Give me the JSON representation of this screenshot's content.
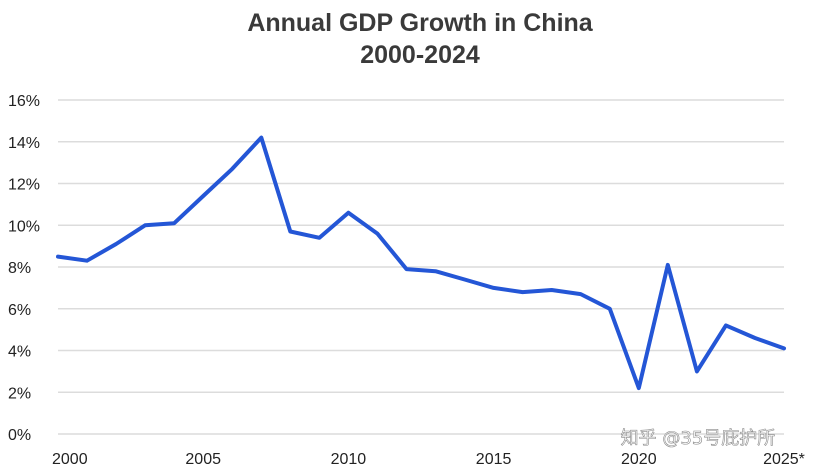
{
  "chart_data": {
    "type": "line",
    "title": "Annual GDP Growth in China",
    "subtitle": "2000-2024",
    "xlabel": "",
    "ylabel": "",
    "xlim": [
      2000,
      2025
    ],
    "ylim": [
      0,
      16
    ],
    "grid": "horizontal",
    "legend": "none",
    "x_ticks": [
      {
        "value": 2000,
        "label": "2000"
      },
      {
        "value": 2005,
        "label": "2005"
      },
      {
        "value": 2010,
        "label": "2010"
      },
      {
        "value": 2015,
        "label": "2015"
      },
      {
        "value": 2020,
        "label": "2020"
      },
      {
        "value": 2025,
        "label": "2025*"
      }
    ],
    "y_ticks": [
      {
        "value": 0,
        "label": "0%"
      },
      {
        "value": 2,
        "label": "2%"
      },
      {
        "value": 4,
        "label": "4%"
      },
      {
        "value": 6,
        "label": "6%"
      },
      {
        "value": 8,
        "label": "8%"
      },
      {
        "value": 10,
        "label": "10%"
      },
      {
        "value": 12,
        "label": "12%"
      },
      {
        "value": 14,
        "label": "14%"
      },
      {
        "value": 16,
        "label": "16%"
      }
    ],
    "series": [
      {
        "color": "#2456d6",
        "x": [
          2000,
          2001,
          2002,
          2003,
          2004,
          2005,
          2006,
          2007,
          2008,
          2009,
          2010,
          2011,
          2012,
          2013,
          2014,
          2015,
          2016,
          2017,
          2018,
          2019,
          2020,
          2021,
          2022,
          2023,
          2024,
          2025
        ],
        "values": [
          8.5,
          8.3,
          9.1,
          10.0,
          10.1,
          11.4,
          12.7,
          14.2,
          9.7,
          9.4,
          10.6,
          9.6,
          7.9,
          7.8,
          7.4,
          7.0,
          6.8,
          6.9,
          6.7,
          6.0,
          2.2,
          8.1,
          3.0,
          5.2,
          4.6,
          4.1
        ]
      }
    ]
  },
  "watermark": {
    "text": "知乎 @35号庇护所"
  }
}
